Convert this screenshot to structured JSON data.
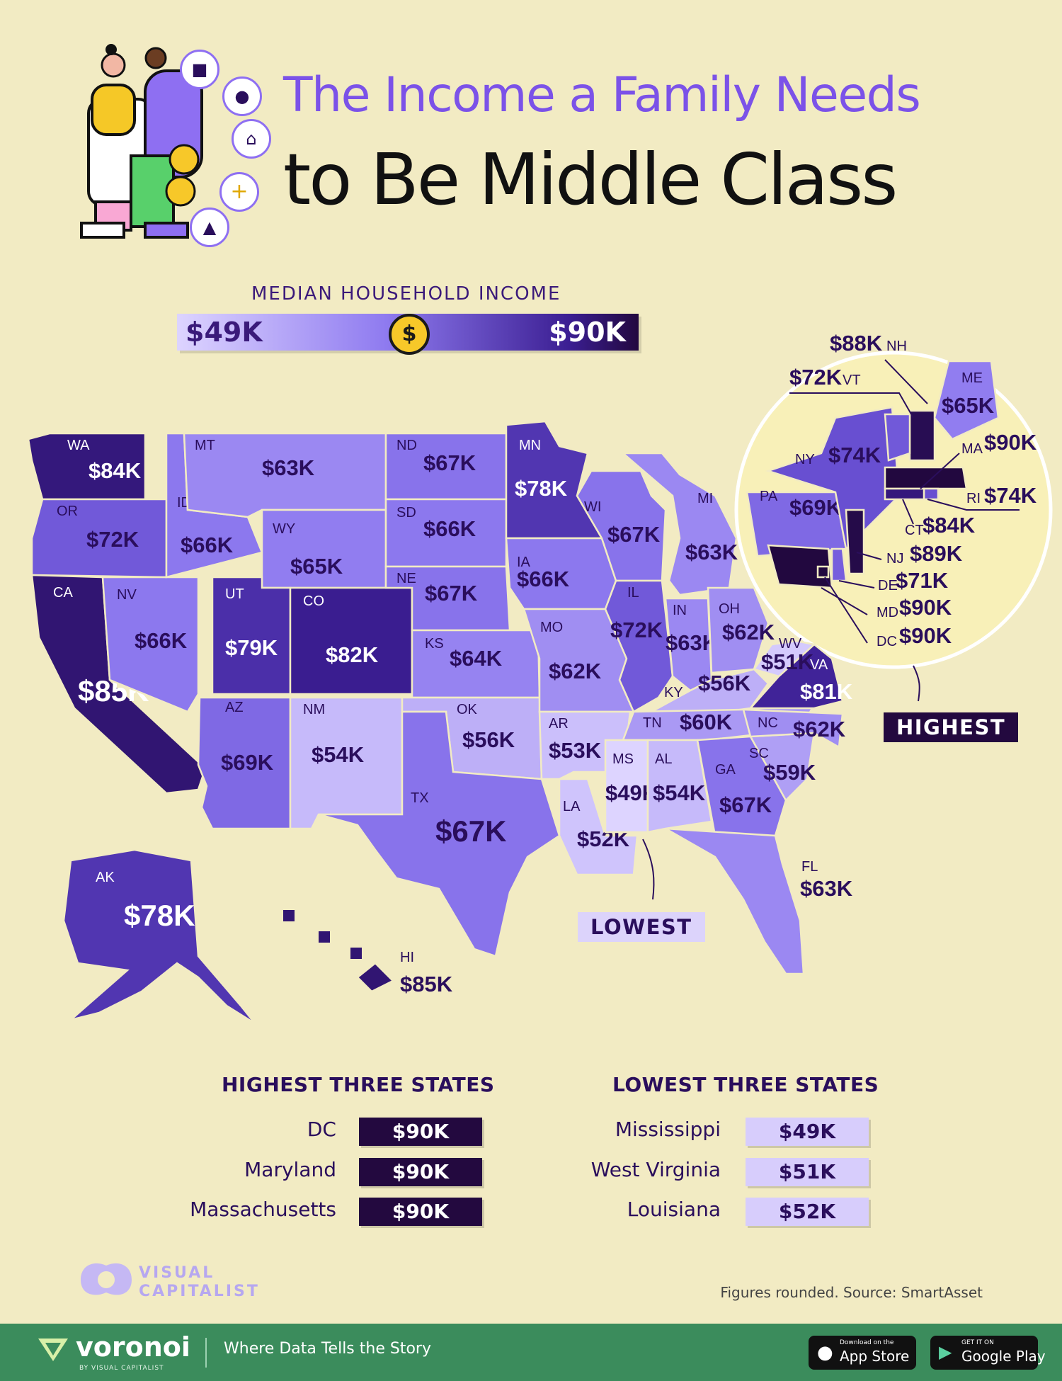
{
  "header": {
    "title_line1": "The Income a Family Needs",
    "title_line2": "to Be Middle Class",
    "illustration_icons": [
      "car-icon",
      "utensils-icon",
      "home-icon",
      "plus-icon",
      "graduation-cap-icon",
      "dollar-coin-icon"
    ]
  },
  "legend": {
    "title": "MEDIAN HOUSEHOLD INCOME",
    "min_label": "$49K",
    "max_label": "$90K",
    "min_value": 49,
    "max_value": 90,
    "coin_symbol": "$",
    "colors": [
      "#ddd4ff",
      "#8f7bf0",
      "#3b1e92",
      "#22083f"
    ]
  },
  "map": {
    "states": [
      {
        "abbr": "WA",
        "value": "$84K",
        "income": 84
      },
      {
        "abbr": "OR",
        "value": "$72K",
        "income": 72
      },
      {
        "abbr": "CA",
        "value": "$85K",
        "income": 85
      },
      {
        "abbr": "NV",
        "value": "$66K",
        "income": 66
      },
      {
        "abbr": "ID",
        "value": "$66K",
        "income": 66
      },
      {
        "abbr": "MT",
        "value": "$63K",
        "income": 63
      },
      {
        "abbr": "WY",
        "value": "$65K",
        "income": 65
      },
      {
        "abbr": "UT",
        "value": "$79K",
        "income": 79
      },
      {
        "abbr": "CO",
        "value": "$82K",
        "income": 82
      },
      {
        "abbr": "AZ",
        "value": "$69K",
        "income": 69
      },
      {
        "abbr": "NM",
        "value": "$54K",
        "income": 54
      },
      {
        "abbr": "ND",
        "value": "$67K",
        "income": 67
      },
      {
        "abbr": "SD",
        "value": "$66K",
        "income": 66
      },
      {
        "abbr": "NE",
        "value": "$67K",
        "income": 67
      },
      {
        "abbr": "KS",
        "value": "$64K",
        "income": 64
      },
      {
        "abbr": "OK",
        "value": "$56K",
        "income": 56
      },
      {
        "abbr": "TX",
        "value": "$67K",
        "income": 67
      },
      {
        "abbr": "MN",
        "value": "$78K",
        "income": 78
      },
      {
        "abbr": "IA",
        "value": "$66K",
        "income": 66
      },
      {
        "abbr": "MO",
        "value": "$62K",
        "income": 62
      },
      {
        "abbr": "AR",
        "value": "$53K",
        "income": 53
      },
      {
        "abbr": "LA",
        "value": "$52K",
        "income": 52
      },
      {
        "abbr": "WI",
        "value": "$67K",
        "income": 67
      },
      {
        "abbr": "IL",
        "value": "$72K",
        "income": 72
      },
      {
        "abbr": "MI",
        "value": "$63K",
        "income": 63
      },
      {
        "abbr": "IN",
        "value": "$63K",
        "income": 63
      },
      {
        "abbr": "OH",
        "value": "$62K",
        "income": 62
      },
      {
        "abbr": "KY",
        "value": "$56K",
        "income": 56
      },
      {
        "abbr": "TN",
        "value": "$60K",
        "income": 60
      },
      {
        "abbr": "MS",
        "value": "$49K",
        "income": 49
      },
      {
        "abbr": "AL",
        "value": "$54K",
        "income": 54
      },
      {
        "abbr": "GA",
        "value": "$67K",
        "income": 67
      },
      {
        "abbr": "FL",
        "value": "$63K",
        "income": 63
      },
      {
        "abbr": "SC",
        "value": "$59K",
        "income": 59
      },
      {
        "abbr": "NC",
        "value": "$62K",
        "income": 62
      },
      {
        "abbr": "VA",
        "value": "$81K",
        "income": 81
      },
      {
        "abbr": "WV",
        "value": "$51K",
        "income": 51
      },
      {
        "abbr": "PA",
        "value": "$69K",
        "income": 69
      },
      {
        "abbr": "NY",
        "value": "$74K",
        "income": 74
      },
      {
        "abbr": "ME",
        "value": "$65K",
        "income": 65
      },
      {
        "abbr": "NH",
        "value": "$88K",
        "income": 88
      },
      {
        "abbr": "VT",
        "value": "$72K",
        "income": 72
      },
      {
        "abbr": "MA",
        "value": "$90K",
        "income": 90
      },
      {
        "abbr": "RI",
        "value": "$74K",
        "income": 74
      },
      {
        "abbr": "CT",
        "value": "$84K",
        "income": 84
      },
      {
        "abbr": "NJ",
        "value": "$89K",
        "income": 89
      },
      {
        "abbr": "DE",
        "value": "$71K",
        "income": 71
      },
      {
        "abbr": "MD",
        "value": "$90K",
        "income": 90
      },
      {
        "abbr": "DC",
        "value": "$90K",
        "income": 90
      },
      {
        "abbr": "AK",
        "value": "$78K",
        "income": 78
      },
      {
        "abbr": "HI",
        "value": "$85K",
        "income": 85
      }
    ],
    "callout_highest": "HIGHEST",
    "callout_lowest": "LOWEST"
  },
  "tables": {
    "highest_title": "HIGHEST THREE STATES",
    "highest": [
      {
        "name": "DC",
        "value": "$90K"
      },
      {
        "name": "Maryland",
        "value": "$90K"
      },
      {
        "name": "Massachusetts",
        "value": "$90K"
      }
    ],
    "lowest_title": "LOWEST THREE STATES",
    "lowest": [
      {
        "name": "Mississippi",
        "value": "$49K"
      },
      {
        "name": "West Virginia",
        "value": "$51K"
      },
      {
        "name": "Louisiana",
        "value": "$52K"
      }
    ]
  },
  "brand": {
    "line1": "VISUAL",
    "line2": "CAPITALIST"
  },
  "source": "Figures rounded. Source: SmartAsset",
  "footer": {
    "logo": "voronoi",
    "logo_sub": "BY VISUAL CAPITALIST",
    "tagline": "Where Data Tells the Story",
    "appstore_small": "Download on the",
    "appstore_big": "App Store",
    "googleplay_small": "GET IT ON",
    "googleplay_big": "Google Play"
  }
}
